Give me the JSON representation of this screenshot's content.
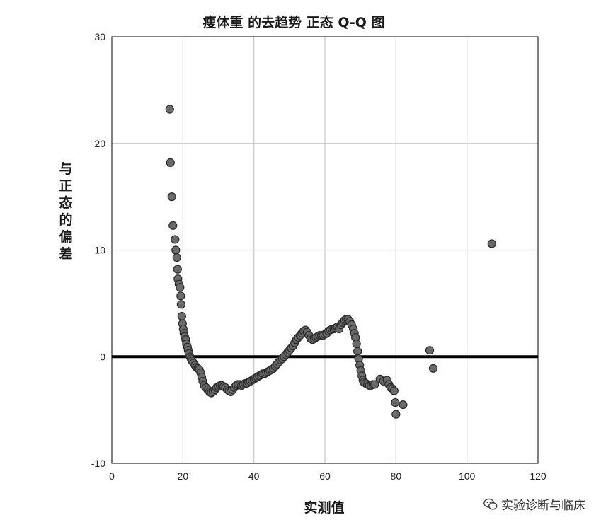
{
  "chart_data": {
    "type": "scatter",
    "title": "瘦体重 的去趋势 正态 Q-Q 图",
    "xlabel": "实测值",
    "ylabel": "与正态的偏差",
    "xlim": [
      0,
      120
    ],
    "ylim": [
      -10,
      30
    ],
    "xticks": [
      "0",
      "20",
      "40",
      "60",
      "80",
      "100",
      "120"
    ],
    "yticks": [
      "-10",
      "0",
      "10",
      "20",
      "30"
    ],
    "grid": true,
    "reference_line": {
      "y": 0
    },
    "points": [
      [
        16.3,
        23.2
      ],
      [
        16.5,
        18.2
      ],
      [
        16.9,
        15.0
      ],
      [
        17.2,
        12.3
      ],
      [
        17.8,
        11.0
      ],
      [
        18.0,
        10.0
      ],
      [
        18.3,
        9.3
      ],
      [
        18.5,
        8.2
      ],
      [
        18.6,
        7.3
      ],
      [
        18.9,
        6.8
      ],
      [
        19.2,
        6.5
      ],
      [
        19.4,
        5.7
      ],
      [
        19.5,
        4.9
      ],
      [
        19.7,
        3.8
      ],
      [
        19.9,
        3.1
      ],
      [
        20.1,
        2.6
      ],
      [
        20.3,
        2.2
      ],
      [
        20.5,
        1.9
      ],
      [
        20.8,
        1.6
      ],
      [
        21.0,
        1.2
      ],
      [
        21.3,
        0.9
      ],
      [
        21.5,
        0.6
      ],
      [
        21.7,
        0.3
      ],
      [
        22.0,
        0.0
      ],
      [
        22.3,
        -0.2
      ],
      [
        22.6,
        -0.4
      ],
      [
        23.0,
        -0.6
      ],
      [
        23.4,
        -0.8
      ],
      [
        23.8,
        -1.0
      ],
      [
        24.2,
        -1.1
      ],
      [
        24.6,
        -1.2
      ],
      [
        25.0,
        -1.5
      ],
      [
        25.3,
        -1.9
      ],
      [
        25.6,
        -2.3
      ],
      [
        26.0,
        -2.7
      ],
      [
        26.5,
        -2.9
      ],
      [
        27.0,
        -3.1
      ],
      [
        27.5,
        -3.3
      ],
      [
        28.0,
        -3.4
      ],
      [
        28.5,
        -3.3
      ],
      [
        29.0,
        -3.1
      ],
      [
        29.5,
        -2.9
      ],
      [
        30.0,
        -2.8
      ],
      [
        30.5,
        -2.7
      ],
      [
        31.0,
        -2.7
      ],
      [
        31.5,
        -2.8
      ],
      [
        32.0,
        -2.9
      ],
      [
        32.5,
        -3.1
      ],
      [
        33.0,
        -3.2
      ],
      [
        33.5,
        -3.3
      ],
      [
        34.0,
        -3.1
      ],
      [
        34.5,
        -2.9
      ],
      [
        35.0,
        -2.7
      ],
      [
        35.5,
        -2.6
      ],
      [
        36.0,
        -2.6
      ],
      [
        36.5,
        -2.7
      ],
      [
        37.0,
        -2.6
      ],
      [
        37.5,
        -2.5
      ],
      [
        38.0,
        -2.5
      ],
      [
        38.5,
        -2.4
      ],
      [
        39.0,
        -2.3
      ],
      [
        39.5,
        -2.2
      ],
      [
        40.0,
        -2.1
      ],
      [
        40.5,
        -2.0
      ],
      [
        41.0,
        -1.9
      ],
      [
        41.5,
        -1.8
      ],
      [
        42.0,
        -1.7
      ],
      [
        42.5,
        -1.6
      ],
      [
        43.0,
        -1.6
      ],
      [
        43.5,
        -1.5
      ],
      [
        44.0,
        -1.4
      ],
      [
        44.5,
        -1.3
      ],
      [
        45.0,
        -1.2
      ],
      [
        45.5,
        -1.1
      ],
      [
        46.0,
        -0.9
      ],
      [
        46.5,
        -0.7
      ],
      [
        47.0,
        -0.5
      ],
      [
        47.5,
        -0.3
      ],
      [
        48.0,
        -0.2
      ],
      [
        48.5,
        0.0
      ],
      [
        49.0,
        0.2
      ],
      [
        49.5,
        0.4
      ],
      [
        50.0,
        0.6
      ],
      [
        50.5,
        0.8
      ],
      [
        51.0,
        1.0
      ],
      [
        51.5,
        1.3
      ],
      [
        52.0,
        1.6
      ],
      [
        52.5,
        1.8
      ],
      [
        53.0,
        2.0
      ],
      [
        53.5,
        2.2
      ],
      [
        54.0,
        2.4
      ],
      [
        54.5,
        2.5
      ],
      [
        55.0,
        2.3
      ],
      [
        55.5,
        2.0
      ],
      [
        56.0,
        1.7
      ],
      [
        56.5,
        1.6
      ],
      [
        57.0,
        1.7
      ],
      [
        57.5,
        1.8
      ],
      [
        58.0,
        1.9
      ],
      [
        58.5,
        2.0
      ],
      [
        59.0,
        2.0
      ],
      [
        59.5,
        2.0
      ],
      [
        60.0,
        2.1
      ],
      [
        60.5,
        2.2
      ],
      [
        61.0,
        2.4
      ],
      [
        61.5,
        2.5
      ],
      [
        62.0,
        2.6
      ],
      [
        62.5,
        2.6
      ],
      [
        63.0,
        2.7
      ],
      [
        63.5,
        2.8
      ],
      [
        64.0,
        2.6
      ],
      [
        64.5,
        3.0
      ],
      [
        65.0,
        3.2
      ],
      [
        65.5,
        3.4
      ],
      [
        66.0,
        3.5
      ],
      [
        66.5,
        3.5
      ],
      [
        67.0,
        3.3
      ],
      [
        67.5,
        3.0
      ],
      [
        68.0,
        2.6
      ],
      [
        68.3,
        2.2
      ],
      [
        68.6,
        1.8
      ],
      [
        68.9,
        1.2
      ],
      [
        69.2,
        0.5
      ],
      [
        69.5,
        -0.2
      ],
      [
        69.8,
        -0.8
      ],
      [
        70.1,
        -1.3
      ],
      [
        70.4,
        -1.8
      ],
      [
        70.7,
        -2.2
      ],
      [
        71.0,
        -2.4
      ],
      [
        71.5,
        -2.5
      ],
      [
        72.0,
        -2.6
      ],
      [
        72.5,
        -2.7
      ],
      [
        73.0,
        -2.7
      ],
      [
        73.5,
        -2.6
      ],
      [
        74.0,
        -2.6
      ],
      [
        75.5,
        -2.1
      ],
      [
        76.5,
        -2.3
      ],
      [
        77.5,
        -2.2
      ],
      [
        78.0,
        -2.6
      ],
      [
        78.5,
        -2.9
      ],
      [
        79.0,
        -3.0
      ],
      [
        79.5,
        -3.2
      ],
      [
        79.8,
        -4.3
      ],
      [
        80.0,
        -5.4
      ],
      [
        82.0,
        -4.5
      ],
      [
        89.5,
        0.6
      ],
      [
        90.5,
        -1.1
      ],
      [
        107.0,
        10.6
      ]
    ]
  },
  "watermark": {
    "text": "实验诊断与临床",
    "icon": "wechat-icon"
  }
}
